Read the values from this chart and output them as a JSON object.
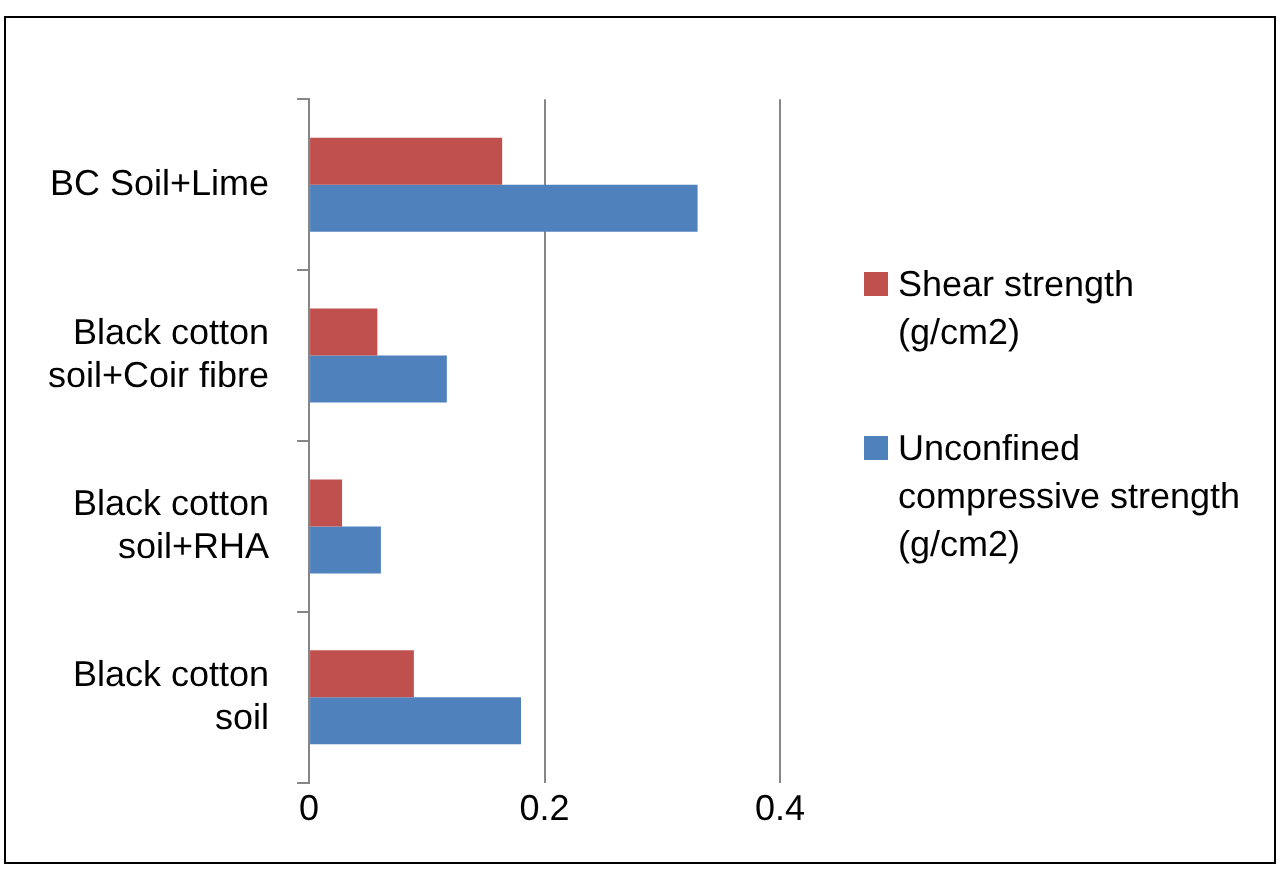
{
  "chart_data": {
    "type": "bar",
    "orientation": "horizontal",
    "categories": [
      "BC Soil+Lime",
      "Black cotton soil+Coir fibre",
      "Black cotton soil+RHA",
      "Black cotton soil"
    ],
    "series": [
      {
        "name": "Shear strength (g/cm2)",
        "color": "#c0504d",
        "values": [
          0.164,
          0.058,
          0.028,
          0.089
        ]
      },
      {
        "name": "Unconfined compressive strength (g/cm2)",
        "color": "#4f81bd",
        "values": [
          0.33,
          0.117,
          0.061,
          0.18
        ]
      }
    ],
    "xlim": [
      0,
      0.4
    ],
    "xticks": [
      0,
      0.2,
      0.4
    ],
    "grid": "x",
    "legend": "right"
  }
}
